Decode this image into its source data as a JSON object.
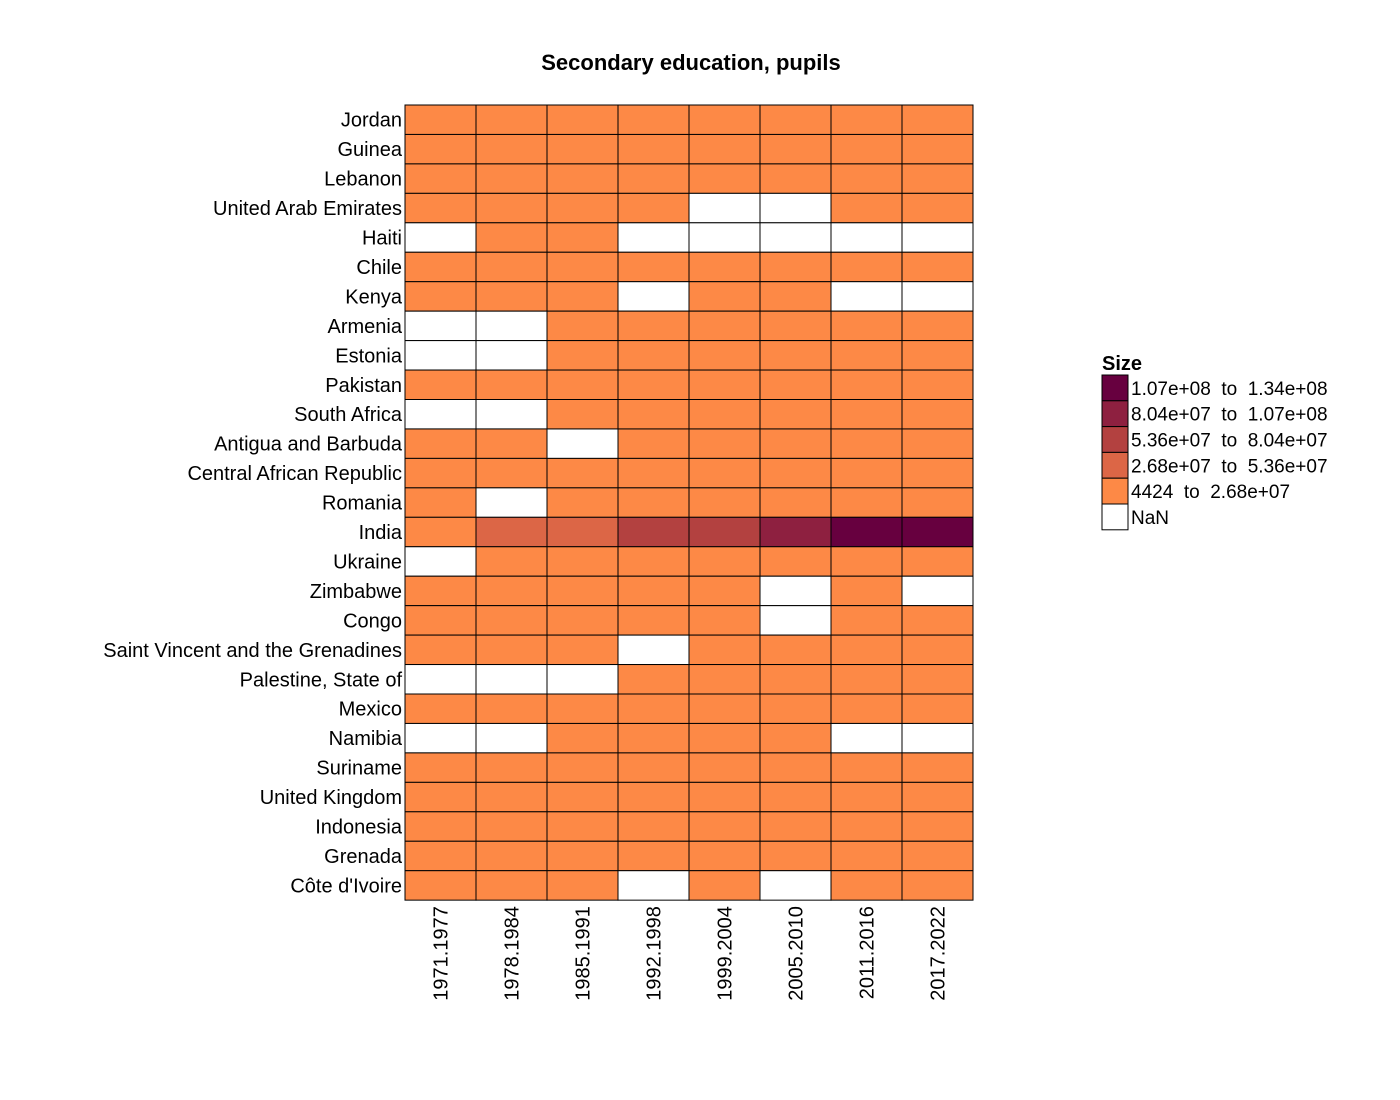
{
  "chart_data": {
    "type": "heatmap",
    "title": "Secondary education, pupils",
    "xlabel": "",
    "ylabel": "",
    "columns": [
      "1971.1977",
      "1978.1984",
      "1985.1991",
      "1992.1998",
      "1999.2004",
      "2005.2010",
      "2011.2016",
      "2017.2022"
    ],
    "rows": [
      "Jordan",
      "Guinea",
      "Lebanon",
      "United Arab Emirates",
      "Haiti",
      "Chile",
      "Kenya",
      "Armenia",
      "Estonia",
      "Pakistan",
      "South Africa",
      "Antigua and Barbuda",
      "Central African Republic",
      "Romania",
      "India",
      "Ukraine",
      "Zimbabwe",
      "Congo",
      "Saint Vincent and the Grenadines",
      "Palestine, State of",
      "Mexico",
      "Namibia",
      "Suriname",
      "United Kingdom",
      "Indonesia",
      "Grenada",
      "Côte d'Ivoire"
    ],
    "value_bins": [
      [
        0,
        0,
        0,
        0,
        0,
        0,
        0,
        0
      ],
      [
        0,
        0,
        0,
        0,
        0,
        0,
        0,
        0
      ],
      [
        0,
        0,
        0,
        0,
        0,
        0,
        0,
        0
      ],
      [
        0,
        0,
        0,
        0,
        null,
        null,
        0,
        0
      ],
      [
        null,
        0,
        0,
        null,
        null,
        null,
        null,
        null
      ],
      [
        0,
        0,
        0,
        0,
        0,
        0,
        0,
        0
      ],
      [
        0,
        0,
        0,
        null,
        0,
        0,
        null,
        null
      ],
      [
        null,
        null,
        0,
        0,
        0,
        0,
        0,
        0
      ],
      [
        null,
        null,
        0,
        0,
        0,
        0,
        0,
        0
      ],
      [
        0,
        0,
        0,
        0,
        0,
        0,
        0,
        0
      ],
      [
        null,
        null,
        0,
        0,
        0,
        0,
        0,
        0
      ],
      [
        0,
        0,
        null,
        0,
        0,
        0,
        0,
        0
      ],
      [
        0,
        0,
        0,
        0,
        0,
        0,
        0,
        0
      ],
      [
        0,
        null,
        0,
        0,
        0,
        0,
        0,
        0
      ],
      [
        0,
        1,
        1,
        2,
        2,
        3,
        4,
        4
      ],
      [
        null,
        0,
        0,
        0,
        0,
        0,
        0,
        0
      ],
      [
        0,
        0,
        0,
        0,
        0,
        null,
        0,
        null
      ],
      [
        0,
        0,
        0,
        0,
        0,
        null,
        0,
        0
      ],
      [
        0,
        0,
        0,
        null,
        0,
        0,
        0,
        0
      ],
      [
        null,
        null,
        null,
        0,
        0,
        0,
        0,
        0
      ],
      [
        0,
        0,
        0,
        0,
        0,
        0,
        0,
        0
      ],
      [
        null,
        null,
        0,
        0,
        0,
        0,
        null,
        null
      ],
      [
        0,
        0,
        0,
        0,
        0,
        0,
        0,
        0
      ],
      [
        0,
        0,
        0,
        0,
        0,
        0,
        0,
        0
      ],
      [
        0,
        0,
        0,
        0,
        0,
        0,
        0,
        0
      ],
      [
        0,
        0,
        0,
        0,
        0,
        0,
        0,
        0
      ],
      [
        0,
        0,
        0,
        null,
        0,
        null,
        0,
        0
      ]
    ],
    "legend": {
      "title": "Size",
      "placement": "right",
      "entries": [
        {
          "label": "1.07e+08  to  1.34e+08",
          "color": "#67003f"
        },
        {
          "label": "8.04e+07  to  1.07e+08",
          "color": "#8e2040"
        },
        {
          "label": "5.36e+07  to  8.04e+07",
          "color": "#b34140"
        },
        {
          "label": "2.68e+07  to  5.36e+07",
          "color": "#dc6646"
        },
        {
          "label": "4424  to  2.68e+07",
          "color": "#fd8946"
        },
        {
          "label": "NaN",
          "color": "#ffffff"
        }
      ]
    },
    "bin_colors": [
      "#fd8946",
      "#dc6646",
      "#b34140",
      "#8e2040",
      "#67003f"
    ],
    "nan_color": "#ffffff"
  }
}
